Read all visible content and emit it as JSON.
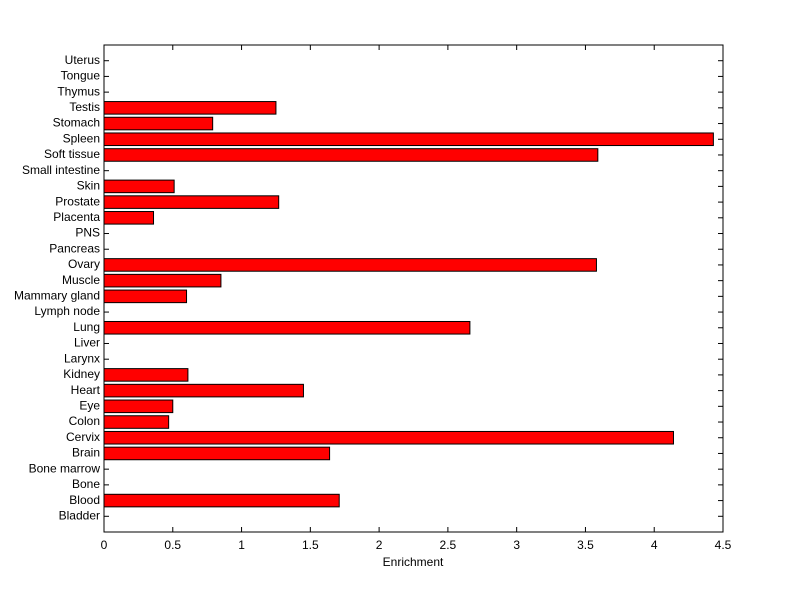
{
  "chart_data": {
    "type": "bar",
    "orientation": "horizontal",
    "categories": [
      "Bladder",
      "Blood",
      "Bone",
      "Bone marrow",
      "Brain",
      "Cervix",
      "Colon",
      "Eye",
      "Heart",
      "Kidney",
      "Larynx",
      "Liver",
      "Lung",
      "Lymph node",
      "Mammary gland",
      "Muscle",
      "Ovary",
      "Pancreas",
      "PNS",
      "Placenta",
      "Prostate",
      "Skin",
      "Small intestine",
      "Soft tissue",
      "Spleen",
      "Stomach",
      "Testis",
      "Thymus",
      "Tongue",
      "Uterus"
    ],
    "values": [
      0,
      1.71,
      0,
      0,
      1.64,
      4.14,
      0.47,
      0.5,
      1.45,
      0.61,
      0,
      0,
      2.66,
      0,
      0.6,
      0.85,
      3.58,
      0,
      0,
      0.36,
      1.27,
      0.51,
      0,
      3.59,
      4.43,
      0.79,
      1.25,
      0,
      0,
      0
    ],
    "color": "#ff0000",
    "xlabel": "Enrichment",
    "xlim": [
      0,
      4.5
    ],
    "xticks": [
      0,
      0.5,
      1,
      1.5,
      2,
      2.5,
      3,
      3.5,
      4,
      4.5
    ],
    "grid": false
  }
}
